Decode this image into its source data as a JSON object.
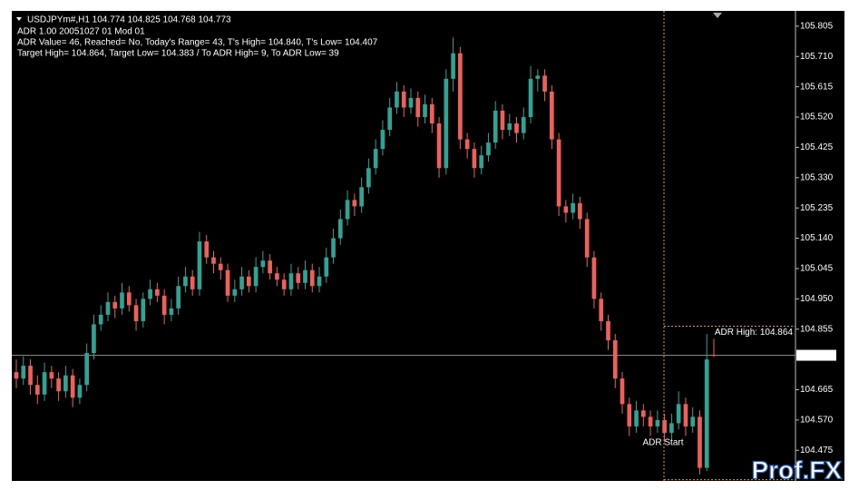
{
  "chart_data": {
    "type": "candlestick",
    "title": "USDJPYm#,H1  104.774 104.825 104.768 104.773",
    "indicator_lines": [
      "ADR 1.00 20051027 01 Mod 01",
      "ADR Value= 46, Reached= No, Today's Range= 43, T's High= 104.840, T's Low= 104.407",
      "Target High= 104.864, Target Low= 104.383 / To ADR High= 9, To ADR Low= 39"
    ],
    "annotations": [
      "ADR High: 104.864",
      "ADR Start"
    ],
    "watermark": "Prof.FX",
    "up_color": "#2fa394",
    "down_color": "#f0605a",
    "levels": [
      104.864,
      104.383
    ],
    "level_color": "#e8923a",
    "bid": 104.773,
    "ylim": [
      104.379,
      105.853
    ],
    "yticks": [
      105.805,
      {
        "value": 105.71,
        "label": "105.710"
      },
      105.615,
      {
        "value": 105.52,
        "label": "105.520"
      },
      105.425,
      {
        "value": 105.33,
        "label": "105.330"
      },
      105.235,
      {
        "value": 105.14,
        "label": "105.140"
      },
      105.045,
      {
        "value": 104.95,
        "label": "104.950"
      },
      104.855,
      104.665,
      {
        "value": 104.57,
        "label": "104.570"
      },
      104.475
    ],
    "ohlc": [
      [
        104.72,
        104.76,
        104.67,
        104.7
      ],
      [
        104.7,
        104.77,
        104.68,
        104.74
      ],
      [
        104.74,
        104.76,
        104.65,
        104.68
      ],
      [
        104.68,
        104.71,
        104.62,
        104.65
      ],
      [
        104.65,
        104.75,
        104.63,
        104.72
      ],
      [
        104.72,
        104.74,
        104.67,
        104.7
      ],
      [
        104.7,
        104.72,
        104.63,
        104.66
      ],
      [
        104.66,
        104.74,
        104.64,
        104.71
      ],
      [
        104.71,
        104.73,
        104.61,
        104.64
      ],
      [
        104.64,
        104.7,
        104.62,
        104.68
      ],
      [
        104.68,
        104.81,
        104.66,
        104.78
      ],
      [
        104.78,
        104.9,
        104.76,
        104.87
      ],
      [
        104.87,
        104.93,
        104.85,
        104.9
      ],
      [
        104.9,
        104.97,
        104.88,
        104.94
      ],
      [
        104.94,
        104.96,
        104.89,
        104.92
      ],
      [
        104.92,
        105.0,
        104.9,
        104.97
      ],
      [
        104.97,
        104.99,
        104.91,
        104.93
      ],
      [
        104.93,
        104.95,
        104.85,
        104.88
      ],
      [
        104.88,
        104.97,
        104.86,
        104.95
      ],
      [
        104.95,
        105.01,
        104.93,
        104.98
      ],
      [
        104.98,
        105.0,
        104.94,
        104.96
      ],
      [
        104.96,
        104.98,
        104.87,
        104.9
      ],
      [
        104.9,
        104.95,
        104.88,
        104.92
      ],
      [
        104.92,
        105.02,
        104.9,
        104.99
      ],
      [
        104.99,
        105.05,
        104.97,
        105.02
      ],
      [
        105.02,
        105.04,
        104.96,
        104.98
      ],
      [
        104.98,
        105.16,
        104.96,
        105.13
      ],
      [
        105.13,
        105.15,
        105.06,
        105.08
      ],
      [
        105.08,
        105.1,
        105.03,
        105.06
      ],
      [
        105.06,
        105.08,
        105.01,
        105.04
      ],
      [
        105.04,
        105.06,
        104.94,
        104.96
      ],
      [
        104.96,
        105.01,
        104.94,
        104.98
      ],
      [
        104.98,
        105.05,
        104.96,
        105.02
      ],
      [
        105.02,
        105.04,
        104.97,
        104.99
      ],
      [
        104.99,
        105.08,
        104.97,
        105.05
      ],
      [
        105.05,
        105.1,
        105.03,
        105.07
      ],
      [
        105.07,
        105.09,
        105.01,
        105.03
      ],
      [
        105.03,
        105.05,
        104.99,
        105.01
      ],
      [
        105.01,
        105.03,
        104.96,
        104.98
      ],
      [
        104.98,
        105.06,
        104.96,
        105.03
      ],
      [
        105.03,
        105.05,
        104.98,
        105.0
      ],
      [
        105.0,
        105.07,
        104.98,
        105.04
      ],
      [
        105.04,
        105.06,
        104.97,
        104.99
      ],
      [
        104.99,
        105.05,
        104.97,
        105.02
      ],
      [
        105.02,
        105.11,
        105.0,
        105.08
      ],
      [
        105.08,
        105.17,
        105.06,
        105.14
      ],
      [
        105.14,
        105.23,
        105.12,
        105.2
      ],
      [
        105.2,
        105.29,
        105.18,
        105.26
      ],
      [
        105.26,
        105.28,
        105.21,
        105.24
      ],
      [
        105.24,
        105.33,
        105.22,
        105.3
      ],
      [
        105.3,
        105.39,
        105.28,
        105.36
      ],
      [
        105.36,
        105.45,
        105.34,
        105.42
      ],
      [
        105.42,
        105.51,
        105.4,
        105.48
      ],
      [
        105.48,
        105.58,
        105.46,
        105.55
      ],
      [
        105.55,
        105.63,
        105.53,
        105.6
      ],
      [
        105.6,
        105.62,
        105.52,
        105.55
      ],
      [
        105.55,
        105.61,
        105.53,
        105.58
      ],
      [
        105.58,
        105.6,
        105.49,
        105.52
      ],
      [
        105.52,
        105.59,
        105.5,
        105.56
      ],
      [
        105.56,
        105.58,
        105.47,
        105.5
      ],
      [
        105.5,
        105.52,
        105.33,
        105.36
      ],
      [
        105.36,
        105.67,
        105.34,
        105.64
      ],
      [
        105.64,
        105.77,
        105.6,
        105.72
      ],
      [
        105.72,
        105.74,
        105.42,
        105.45
      ],
      [
        105.45,
        105.47,
        105.39,
        105.42
      ],
      [
        105.42,
        105.44,
        105.33,
        105.36
      ],
      [
        105.36,
        105.43,
        105.34,
        105.4
      ],
      [
        105.4,
        105.47,
        105.38,
        105.44
      ],
      [
        105.44,
        105.57,
        105.42,
        105.54
      ],
      [
        105.54,
        105.56,
        105.45,
        105.48
      ],
      [
        105.48,
        105.53,
        105.46,
        105.5
      ],
      [
        105.5,
        105.52,
        105.44,
        105.47
      ],
      [
        105.47,
        105.55,
        105.45,
        105.52
      ],
      [
        105.52,
        105.68,
        105.5,
        105.64
      ],
      [
        105.64,
        105.67,
        105.6,
        105.65
      ],
      [
        105.65,
        105.67,
        105.57,
        105.6
      ],
      [
        105.6,
        105.62,
        105.42,
        105.45
      ],
      [
        105.45,
        105.47,
        105.21,
        105.24
      ],
      [
        105.24,
        105.26,
        105.19,
        105.22
      ],
      [
        105.22,
        105.28,
        105.2,
        105.25
      ],
      [
        105.25,
        105.27,
        105.17,
        105.2
      ],
      [
        105.2,
        105.22,
        105.05,
        105.08
      ],
      [
        105.08,
        105.1,
        104.92,
        104.95
      ],
      [
        104.95,
        104.97,
        104.85,
        104.88
      ],
      [
        104.88,
        104.9,
        104.79,
        104.82
      ],
      [
        104.82,
        104.84,
        104.67,
        104.7
      ],
      [
        104.7,
        104.72,
        104.59,
        104.62
      ],
      [
        104.62,
        104.64,
        104.52,
        104.55
      ],
      [
        104.55,
        104.63,
        104.53,
        104.6
      ],
      [
        104.6,
        104.62,
        104.55,
        104.58
      ],
      [
        104.58,
        104.6,
        104.52,
        104.55
      ],
      [
        104.55,
        104.6,
        104.53,
        104.57
      ],
      [
        104.57,
        104.59,
        104.5,
        104.53
      ],
      [
        104.53,
        104.59,
        104.51,
        104.56
      ],
      [
        104.56,
        104.66,
        104.54,
        104.62
      ],
      [
        104.62,
        104.64,
        104.52,
        104.55
      ],
      [
        104.55,
        104.61,
        104.53,
        104.58
      ],
      [
        104.58,
        104.6,
        104.4,
        104.42
      ],
      [
        104.42,
        104.84,
        104.41,
        104.76
      ],
      [
        104.774,
        104.825,
        104.768,
        104.773
      ]
    ]
  }
}
